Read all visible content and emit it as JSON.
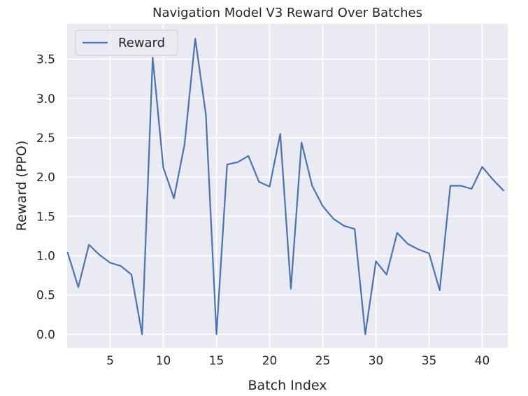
{
  "chart_data": {
    "type": "line",
    "title": "Navigation Model V3 Reward Over Batches",
    "xlabel": "Batch Index",
    "ylabel": "Reward (PPO)",
    "xlim": [
      0.95,
      42.4
    ],
    "ylim": [
      -0.17,
      3.95
    ],
    "xticks": [
      5,
      10,
      15,
      20,
      25,
      30,
      35,
      40
    ],
    "yticks": [
      0.0,
      0.5,
      1.0,
      1.5,
      2.0,
      2.5,
      3.0,
      3.5
    ],
    "ytick_labels": [
      "0.0",
      "0.5",
      "1.0",
      "1.5",
      "2.0",
      "2.5",
      "3.0",
      "3.5"
    ],
    "grid": true,
    "legend": {
      "location": "top-left"
    },
    "colors": {
      "background": "#eaeaf2",
      "grid": "#ffffff",
      "series": "#4c72b0"
    },
    "series": [
      {
        "name": "Reward",
        "x": [
          1,
          2,
          3,
          4,
          5,
          6,
          7,
          8,
          9,
          10,
          11,
          12,
          13,
          14,
          15,
          16,
          17,
          18,
          19,
          20,
          21,
          22,
          23,
          24,
          25,
          26,
          27,
          28,
          29,
          30,
          31,
          32,
          33,
          34,
          35,
          36,
          37,
          38,
          39,
          40,
          41,
          42
        ],
        "values": [
          1.04,
          0.6,
          1.14,
          1.01,
          0.91,
          0.87,
          0.76,
          0.0,
          3.52,
          2.12,
          1.73,
          2.42,
          3.76,
          2.8,
          0.0,
          2.16,
          2.19,
          2.27,
          1.94,
          1.88,
          2.55,
          0.58,
          2.44,
          1.89,
          1.63,
          1.47,
          1.38,
          1.34,
          0.0,
          0.93,
          0.76,
          1.29,
          1.15,
          1.08,
          1.03,
          0.56,
          1.89,
          1.89,
          1.85,
          2.13,
          1.97,
          1.83
        ]
      }
    ]
  }
}
